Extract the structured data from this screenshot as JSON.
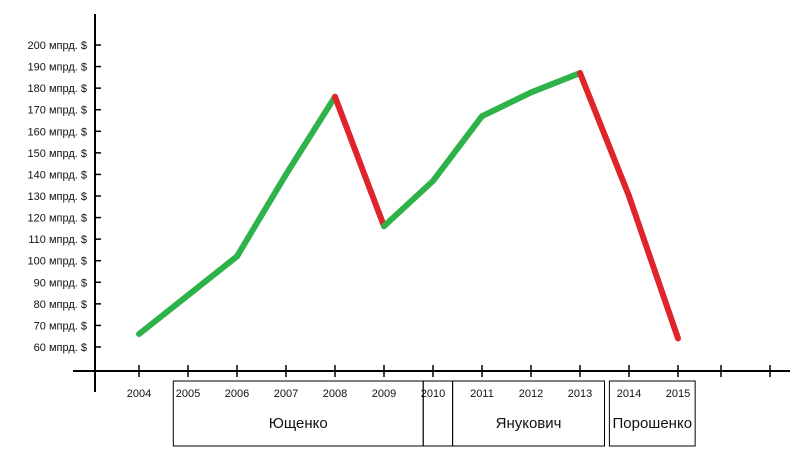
{
  "chart_data": {
    "type": "line",
    "title": "",
    "xlabel": "",
    "ylabel": "",
    "x": [
      2004,
      2005,
      2006,
      2007,
      2008,
      2009,
      2010,
      2011,
      2012,
      2013,
      2014,
      2015
    ],
    "x_tick_labels": [
      "2004",
      "2005",
      "2006",
      "2007",
      "2008",
      "2009",
      "2010",
      "2011",
      "2012",
      "2013",
      "2014",
      "2015"
    ],
    "y_tick_labels": [
      "60 мпрд. $",
      "70 мпрд. $",
      "80 мпрд. $",
      "90 мпрд. $",
      "100 мпрд. $",
      "110 мпрд. $",
      "120 мпрд. $",
      "130 мпрд. $",
      "140 мпрд. $",
      "150 мпрд. $",
      "160 мпрд. $",
      "170 мпрд. $",
      "180 мпрд. $",
      "190 мпрд. $",
      "200 мпрд. $"
    ],
    "y_ticks": [
      60,
      70,
      80,
      90,
      100,
      110,
      120,
      130,
      140,
      150,
      160,
      170,
      180,
      190,
      200
    ],
    "ylim": [
      50,
      210
    ],
    "xlim": [
      2003,
      2016
    ],
    "grid": false,
    "points": [
      {
        "x": 2004,
        "y": 66
      },
      {
        "x": 2005,
        "y": 84
      },
      {
        "x": 2006,
        "y": 102
      },
      {
        "x": 2007,
        "y": 140
      },
      {
        "x": 2008,
        "y": 176
      },
      {
        "x": 2009,
        "y": 116
      },
      {
        "x": 2010,
        "y": 137
      },
      {
        "x": 2011,
        "y": 167
      },
      {
        "x": 2012,
        "y": 178
      },
      {
        "x": 2013,
        "y": 187
      },
      {
        "x": 2014,
        "y": 130
      },
      {
        "x": 2015,
        "y": 64
      }
    ],
    "segment_colors": [
      "#2eb24a",
      "#2eb24a",
      "#2eb24a",
      "#2eb24a",
      "#e0242c",
      "#2eb24a",
      "#2eb24a",
      "#2eb24a",
      "#2eb24a",
      "#e0242c",
      "#e0242c"
    ],
    "presidents": [
      {
        "name": "Ющенко",
        "from": 2004.7,
        "to": 2009.8
      },
      {
        "name": "",
        "from": 2009.8,
        "to": 2010.4
      },
      {
        "name": "Янукович",
        "from": 2010.4,
        "to": 2013.5
      },
      {
        "name": "Порошенко",
        "from": 2013.6,
        "to": 2015.35
      }
    ]
  }
}
